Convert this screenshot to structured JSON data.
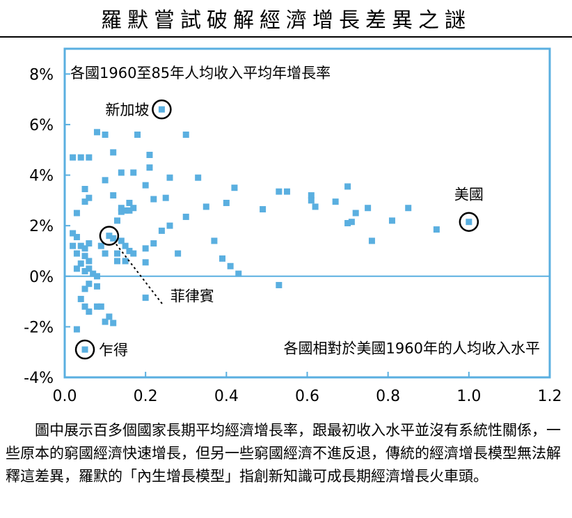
{
  "page": {
    "title": "羅默嘗試破解經濟增長差異之謎",
    "caption": "圖中展示百多個國家長期平均經濟增長率，跟最初收入水平並沒有系統性關係，一些原本的窮國經濟快速增長，但另一些窮國經濟不進反退，傳統的經濟增長模型無法解釋這差異，羅默的「內生增長模型」指創新知識可成長期經濟增長火車頭。"
  },
  "chart_data": {
    "type": "scatter",
    "title": "",
    "ylabel_text": "各國1960至85年人均收入平均年增長率",
    "xlabel_text": "各國相對於美國1960年的人均收入水平",
    "xlim": [
      0,
      1.2
    ],
    "ylim": [
      -4,
      9
    ],
    "xticks": [
      0,
      0.2,
      0.4,
      0.6,
      0.8,
      1.0,
      1.2
    ],
    "xtick_labels": [
      "0.0",
      "0.2",
      "0.4",
      "0.6",
      "0.8",
      "1.0",
      "1.2"
    ],
    "yticks": [
      -4,
      -2,
      0,
      2,
      4,
      6,
      8
    ],
    "ytick_labels": [
      "-4%",
      "-2%",
      "0%",
      "2%",
      "4%",
      "6%",
      "8%"
    ],
    "grid": false,
    "zero_line": true,
    "colors": {
      "points": "#5aafe0",
      "frame": "#5aafe0",
      "zero_line": "#5aafe0"
    },
    "annotations": [
      {
        "text": "新加坡",
        "x": 0.24,
        "y": 6.6,
        "circled": true
      },
      {
        "text": "美國",
        "x": 1.0,
        "y": 2.15,
        "circled": true
      },
      {
        "text": "菲律賓",
        "x": 0.11,
        "y": 1.6,
        "circled": true,
        "leader": true
      },
      {
        "text": "乍得",
        "x": 0.05,
        "y": -2.9,
        "circled": true
      }
    ],
    "points": [
      [
        0.24,
        6.6
      ],
      [
        1.0,
        2.15
      ],
      [
        0.11,
        1.6
      ],
      [
        0.05,
        -2.9
      ],
      [
        0.02,
        4.7
      ],
      [
        0.04,
        4.7
      ],
      [
        0.06,
        4.7
      ],
      [
        0.08,
        5.7
      ],
      [
        0.1,
        5.6
      ],
      [
        0.12,
        4.9
      ],
      [
        0.1,
        3.8
      ],
      [
        0.14,
        4.1
      ],
      [
        0.17,
        4.1
      ],
      [
        0.05,
        3.45
      ],
      [
        0.06,
        3.1
      ],
      [
        0.05,
        2.95
      ],
      [
        0.03,
        2.5
      ],
      [
        0.12,
        3.2
      ],
      [
        0.16,
        2.9
      ],
      [
        0.17,
        2.7
      ],
      [
        0.2,
        3.6
      ],
      [
        0.21,
        4.3
      ],
      [
        0.21,
        4.8
      ],
      [
        0.18,
        5.6
      ],
      [
        0.3,
        5.6
      ],
      [
        0.26,
        3.9
      ],
      [
        0.33,
        3.9
      ],
      [
        0.25,
        3.1
      ],
      [
        0.22,
        3.05
      ],
      [
        0.26,
        2.0
      ],
      [
        0.24,
        1.8
      ],
      [
        0.3,
        2.35
      ],
      [
        0.35,
        2.75
      ],
      [
        0.37,
        1.4
      ],
      [
        0.39,
        0.7
      ],
      [
        0.41,
        0.4
      ],
      [
        0.43,
        0.1
      ],
      [
        0.4,
        2.9
      ],
      [
        0.42,
        3.5
      ],
      [
        0.49,
        2.65
      ],
      [
        0.53,
        3.35
      ],
      [
        0.55,
        3.35
      ],
      [
        0.61,
        3.2
      ],
      [
        0.61,
        3.0
      ],
      [
        0.62,
        2.75
      ],
      [
        0.67,
        2.95
      ],
      [
        0.7,
        2.1
      ],
      [
        0.7,
        3.55
      ],
      [
        0.71,
        2.15
      ],
      [
        0.72,
        2.5
      ],
      [
        0.75,
        2.7
      ],
      [
        0.76,
        1.4
      ],
      [
        0.81,
        2.2
      ],
      [
        0.85,
        2.7
      ],
      [
        0.92,
        1.85
      ],
      [
        0.53,
        -0.35
      ],
      [
        0.02,
        1.7
      ],
      [
        0.03,
        1.55
      ],
      [
        0.04,
        1.2
      ],
      [
        0.05,
        1.1
      ],
      [
        0.06,
        1.3
      ],
      [
        0.02,
        1.2
      ],
      [
        0.03,
        0.9
      ],
      [
        0.05,
        0.8
      ],
      [
        0.04,
        0.5
      ],
      [
        0.03,
        0.3
      ],
      [
        0.05,
        0.2
      ],
      [
        0.06,
        0.3
      ],
      [
        0.07,
        0.1
      ],
      [
        0.08,
        -0.4
      ],
      [
        0.06,
        -0.3
      ],
      [
        0.05,
        -0.5
      ],
      [
        0.04,
        -0.9
      ],
      [
        0.05,
        -1.2
      ],
      [
        0.06,
        -1.4
      ],
      [
        0.08,
        -1.2
      ],
      [
        0.09,
        -1.2
      ],
      [
        0.1,
        -1.8
      ],
      [
        0.11,
        -1.6
      ],
      [
        0.12,
        -1.85
      ],
      [
        0.03,
        -2.1
      ],
      [
        0.14,
        2.7
      ],
      [
        0.14,
        2.55
      ],
      [
        0.15,
        2.6
      ],
      [
        0.16,
        2.6
      ],
      [
        0.13,
        2.2
      ],
      [
        0.12,
        1.5
      ],
      [
        0.14,
        1.4
      ],
      [
        0.15,
        1.2
      ],
      [
        0.16,
        1.0
      ],
      [
        0.13,
        0.9
      ],
      [
        0.13,
        0.6
      ],
      [
        0.15,
        0.6
      ],
      [
        0.2,
        0.55
      ],
      [
        0.2,
        1.1
      ],
      [
        0.22,
        1.3
      ],
      [
        0.2,
        -0.85
      ],
      [
        0.28,
        0.9
      ],
      [
        0.17,
        0.9
      ],
      [
        0.1,
        0.9
      ],
      [
        0.09,
        1.2
      ],
      [
        0.06,
        0.6
      ],
      [
        0.08,
        0.0
      ]
    ]
  }
}
